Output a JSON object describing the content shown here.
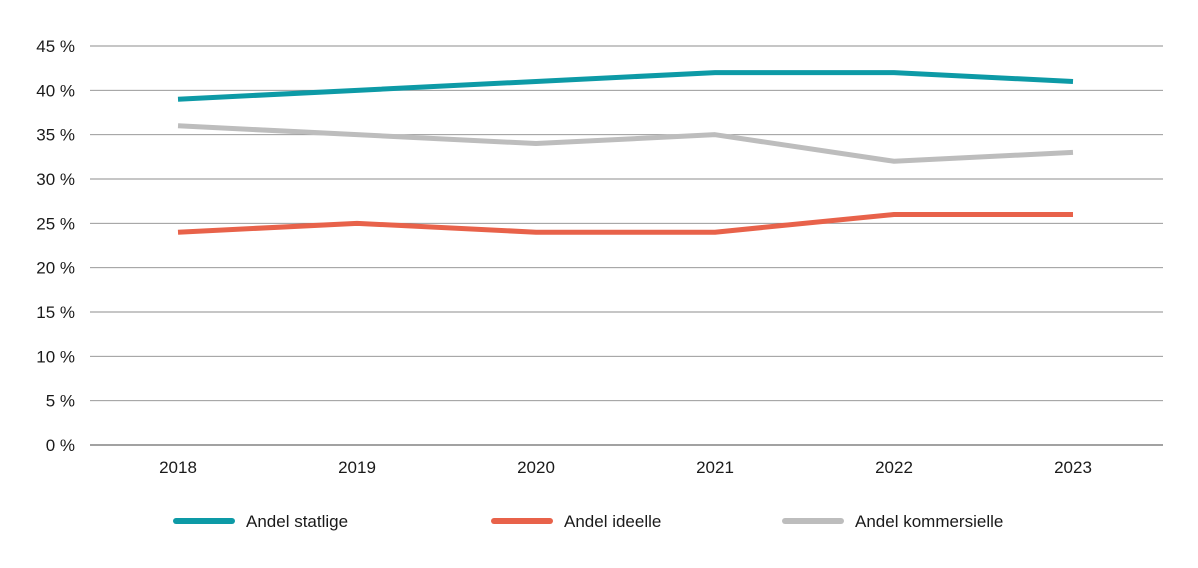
{
  "chart_data": {
    "type": "line",
    "categories": [
      "2018",
      "2019",
      "2020",
      "2021",
      "2022",
      "2023"
    ],
    "series": [
      {
        "name": "Andel statlige",
        "color": "#0d9aa6",
        "values": [
          39,
          40,
          41,
          42,
          42,
          41
        ]
      },
      {
        "name": "Andel ideelle",
        "color": "#e8624a",
        "values": [
          24,
          25,
          24,
          24,
          26,
          26
        ]
      },
      {
        "name": "Andel kommersielle",
        "color": "#bdbdbd",
        "values": [
          36,
          35,
          34,
          35,
          32,
          33
        ]
      }
    ],
    "ylim": [
      0,
      45
    ],
    "yticks": [
      0,
      5,
      10,
      15,
      20,
      25,
      30,
      35,
      40,
      45
    ],
    "ytick_labels": [
      "0 %",
      "5 %",
      "10 %",
      "15 %",
      "20 %",
      "25 %",
      "30 %",
      "35 %",
      "40 %",
      "45 %"
    ],
    "grid": true,
    "legend": "bottom",
    "title": "",
    "xlabel": "",
    "ylabel": ""
  }
}
